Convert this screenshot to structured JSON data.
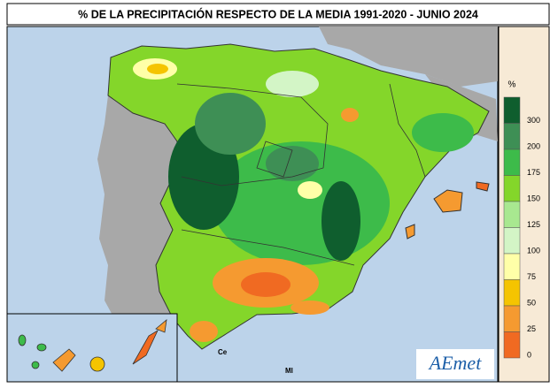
{
  "header": {
    "title": "% DE LA PRECIPITACIÓN RESPECTO DE LA MEDIA 1991-2020 - JUNIO 2024"
  },
  "legend": {
    "unit": "%",
    "ticks": [
      300,
      200,
      175,
      150,
      125,
      100,
      75,
      50,
      25,
      0
    ],
    "colors": [
      "#0f5e2e",
      "#3e8f55",
      "#3dbb4a",
      "#84d62a",
      "#a8e890",
      "#d3f5c6",
      "#ffffa8",
      "#f5c400",
      "#f59a30",
      "#f06a22"
    ]
  },
  "map": {
    "labels": [
      "Ce",
      "Ml"
    ],
    "logo": "AEmet"
  }
}
